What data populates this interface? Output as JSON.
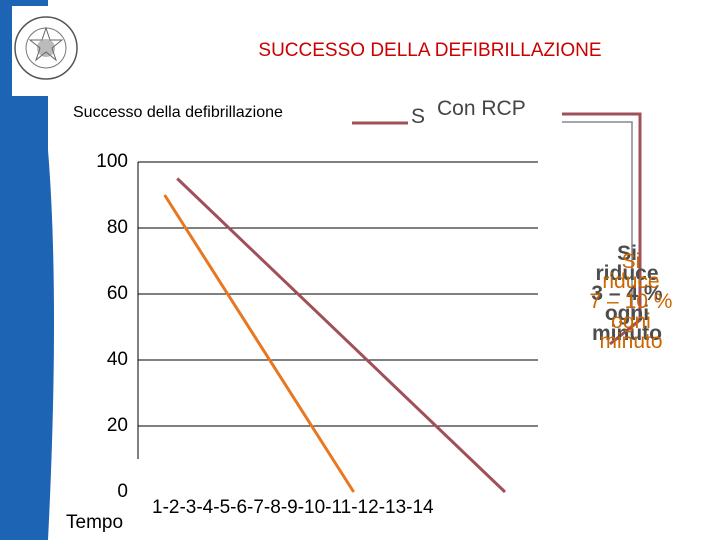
{
  "header": {
    "title": "SUCCESSO DELLA DEFIBRILLAZIONE",
    "seal_text": "IN SUPREMAE DIGNITATIS 1343"
  },
  "colors": {
    "blue_band": "#1e64b4",
    "title_red": "#cc0000",
    "series_orange": "#e87722",
    "series_maroon": "#a0505a",
    "bracket_maroon": "#a0505a"
  },
  "legend": {
    "label": "Successo della defibrillazione",
    "s_mark": "S",
    "rcp_label": "Con RCP"
  },
  "note": {
    "line1_a": "Si",
    "line2_a": "riduce",
    "line3_a": "3 – 4 %",
    "line4_a": "ogni",
    "line5_a": "minuto",
    "line1_b": "Si",
    "line2_b": "riduce",
    "line3_b": "7 – 10 %",
    "line4_b": "ogni",
    "line5_b": "minuto"
  },
  "chart_data": {
    "type": "line",
    "title": "SUCCESSO DELLA DEFIBRILLAZIONE",
    "ylabel": "Successo della defibrillazione",
    "xlabel": "Tempo",
    "x_tick_text": "1-2-3-4-5-6-7-8-9-10-11-12-13-14",
    "y_ticks": [
      "100",
      "80",
      "60",
      "40",
      "20",
      "0"
    ],
    "ylim": [
      0,
      100
    ],
    "xlim": [
      0,
      14
    ],
    "grid": true,
    "series": [
      {
        "name": "Con RCP",
        "color": "#a0505a",
        "x": [
          1,
          14
        ],
        "y": [
          95,
          0
        ]
      },
      {
        "name": "",
        "color": "#e87722",
        "x": [
          0.5,
          8
        ],
        "y": [
          90,
          0
        ]
      }
    ]
  }
}
